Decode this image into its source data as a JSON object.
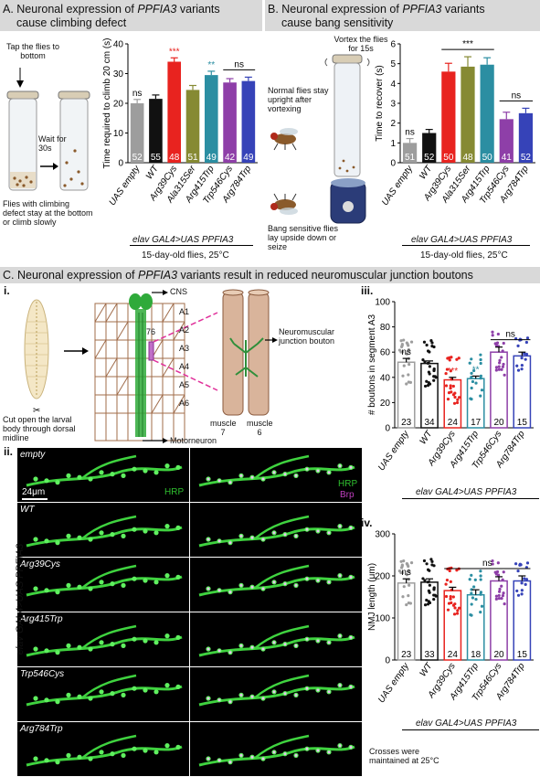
{
  "panelA": {
    "title_pre": "A. Neuronal expression of ",
    "title_gene": "PPFIA3",
    "title_post": " variants",
    "title_line2": "cause climbing defect",
    "tap": "Tap the flies to bottom",
    "wait": "Wait for 30s",
    "flies_note": "Flies with climbing defect stay at the bottom or climb slowly",
    "genotype": "elav GAL4>UAS PPFIA3",
    "footer": "15-day-old flies, 25°C"
  },
  "panelB": {
    "title_pre": "B. Neuronal expression of ",
    "title_gene": "PPFIA3",
    "title_post": " variants",
    "title_line2": "cause bang sensitivity",
    "vortex": "Vortex the flies for 15s",
    "normal": "Normal flies stay upright after vortexing",
    "bang": "Bang sensitive flies lay upside down or seize",
    "genotype": "elav GAL4>UAS PPFIA3",
    "footer": "15-day-old flies, 25°C"
  },
  "panelC": {
    "title_pre": "C. Neuronal expression of ",
    "title_gene": "PPFIA3",
    "title_post": " variants result in reduced neuromuscular junction boutons",
    "i_label": "i.",
    "ii_label": "ii.",
    "iii_label": "iii.",
    "iv_label": "iv.",
    "cut_text": "Cut open the larval body through dorsal midline",
    "cns": "CNS",
    "segments": [
      "A1",
      "A2",
      "A3",
      "A4",
      "A5",
      "A6"
    ],
    "muscle_nums": "76",
    "nmj_label": "Neuromuscular junction bouton",
    "muscle7": "muscle 7",
    "muscle6": "muscle 6",
    "motor": "Motorneuron",
    "genotype_side": "elav GAL4>UAS PPFIA3",
    "scale": "24μm",
    "hrp": "HRP",
    "brp": "Brp",
    "micro_labels": [
      "empty",
      "WT",
      "Arg39Cys",
      "Arg415Trp",
      "Trp546Cys",
      "Arg784Trp"
    ],
    "genotype": "elav GAL4>UAS PPFIA3",
    "crosses": "Crosses were maintained at 25°C"
  },
  "chart_data": [
    {
      "type": "bar",
      "panel": "A",
      "ylabel": "Time required to climb 20 cm (s)",
      "ylim": [
        0,
        40
      ],
      "yticks": [
        0,
        10,
        20,
        30,
        40
      ],
      "categories": [
        "UAS empty",
        "WT",
        "Arg39Cys",
        "Ala315Ser",
        "Arg415Trp",
        "Trp546Cys",
        "Arg784Trp"
      ],
      "values": [
        20,
        21.5,
        34,
        24.5,
        29.5,
        27,
        27.5
      ],
      "errors": [
        1.3,
        1.3,
        1.3,
        1.5,
        1.3,
        1.3,
        1.3
      ],
      "n": [
        "52",
        "55",
        "48",
        "51",
        "49",
        "42",
        "49"
      ],
      "colors": [
        "#9d9d9d",
        "#111111",
        "#e8231f",
        "#868a33",
        "#2b8ea2",
        "#8e3fa8",
        "#3643b8"
      ],
      "annotations": [
        {
          "label": "ns",
          "cat": 0
        },
        {
          "label": "***",
          "cat": 2
        },
        {
          "label": "**",
          "cat": 4
        },
        {
          "label": "ns",
          "cats": [
            5,
            6
          ]
        }
      ]
    },
    {
      "type": "bar",
      "panel": "B",
      "ylabel": "Time to recover (s)",
      "ylim": [
        0,
        6
      ],
      "yticks": [
        0,
        1,
        2,
        3,
        4,
        5,
        6
      ],
      "categories": [
        "UAS empty",
        "WT",
        "Arg39Cys",
        "Ala315Ser",
        "Arg415Trp",
        "Trp546Cys",
        "Arg784Trp"
      ],
      "values": [
        1.0,
        1.5,
        4.6,
        4.85,
        4.95,
        2.2,
        2.5
      ],
      "errors": [
        0.22,
        0.18,
        0.42,
        0.5,
        0.35,
        0.35,
        0.25
      ],
      "n": [
        "51",
        "52",
        "50",
        "48",
        "50",
        "41",
        "52"
      ],
      "colors": [
        "#9d9d9d",
        "#111111",
        "#e8231f",
        "#868a33",
        "#2b8ea2",
        "#8e3fa8",
        "#3643b8"
      ],
      "annotations": [
        {
          "label": "ns",
          "cat": 0
        },
        {
          "label": "***",
          "cats": [
            2,
            4
          ]
        },
        {
          "label": "ns",
          "cats": [
            5,
            6
          ]
        }
      ]
    },
    {
      "type": "bar",
      "panel": "C.iii",
      "ylabel": "# boutons in segment A3",
      "ylim": [
        0,
        100
      ],
      "yticks": [
        0,
        20,
        40,
        60,
        80,
        100
      ],
      "categories": [
        "UAS empty",
        "WT",
        "Arg39Cys",
        "Arg415Trp",
        "Trp546Cys",
        "Arg784Trp"
      ],
      "values": [
        52,
        51,
        38,
        39,
        60,
        57
      ],
      "errors": [
        3,
        2,
        2,
        2,
        4,
        3
      ],
      "n": [
        "23",
        "34",
        "24",
        "17",
        "20",
        "15"
      ],
      "colors": [
        "#9d9d9d",
        "#111111",
        "#e8231f",
        "#2b8ea2",
        "#8e3fa8",
        "#3643b8"
      ],
      "annotations": [
        {
          "label": "ns",
          "cat": 0
        },
        {
          "label": "***",
          "cat": 2
        },
        {
          "label": "**",
          "cat": 3
        },
        {
          "label": "ns",
          "cats": [
            4,
            5
          ]
        }
      ]
    },
    {
      "type": "bar",
      "panel": "C.iv",
      "ylabel": "NMJ length (μm)",
      "ylim": [
        0,
        300
      ],
      "yticks": [
        0,
        100,
        200,
        300
      ],
      "categories": [
        "UAS empty",
        "WT",
        "Arg39Cys",
        "Arg415Trp",
        "Trp546Cys",
        "Arg784Trp"
      ],
      "values": [
        183,
        185,
        165,
        155,
        188,
        188
      ],
      "errors": [
        10,
        8,
        8,
        12,
        10,
        12
      ],
      "n": [
        "23",
        "33",
        "24",
        "18",
        "20",
        "15"
      ],
      "colors": [
        "#9d9d9d",
        "#111111",
        "#e8231f",
        "#2b8ea2",
        "#8e3fa8",
        "#3643b8"
      ],
      "annotations": [
        {
          "label": "ns",
          "cat": 0
        },
        {
          "label": "ns",
          "cats": [
            2,
            5
          ]
        }
      ]
    }
  ]
}
